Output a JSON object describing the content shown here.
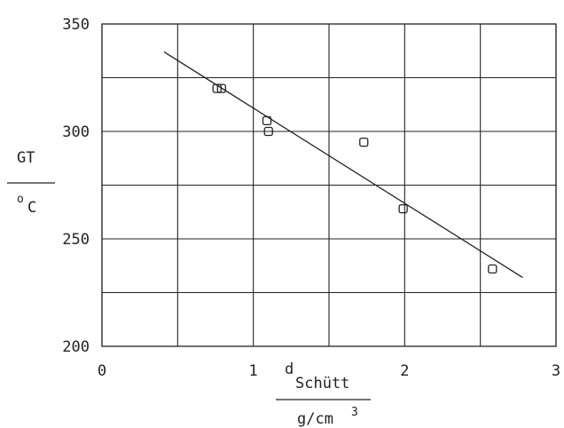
{
  "chart_data": {
    "type": "scatter",
    "title": "",
    "xlabel": {
      "main": "d",
      "sub": "Schütt",
      "unit": "g/cm",
      "unit_sup": "3"
    },
    "ylabel": {
      "main": "GT",
      "unit_sup": "o",
      "unit": "C"
    },
    "xlim": [
      0,
      3
    ],
    "ylim": [
      200,
      350
    ],
    "x_ticks": [
      0,
      1,
      2,
      3
    ],
    "x_tick_labels": [
      "0",
      "1",
      "2",
      "3"
    ],
    "x_grid": [
      0,
      0.5,
      1,
      1.5,
      2,
      2.5,
      3
    ],
    "y_ticks": [
      200,
      250,
      300,
      350
    ],
    "y_tick_labels": [
      "200",
      "250",
      "300",
      "350"
    ],
    "y_grid": [
      200,
      225,
      250,
      275,
      300,
      325,
      350
    ],
    "grid": true,
    "marker": "square",
    "points": [
      {
        "x": 0.76,
        "y": 320
      },
      {
        "x": 0.79,
        "y": 320
      },
      {
        "x": 1.09,
        "y": 305
      },
      {
        "x": 1.1,
        "y": 300
      },
      {
        "x": 1.73,
        "y": 295
      },
      {
        "x": 1.99,
        "y": 264
      },
      {
        "x": 2.58,
        "y": 236
      }
    ],
    "trend_line": {
      "x": [
        0.41,
        2.78
      ],
      "y": [
        337,
        232
      ]
    },
    "colors": {
      "ink": "#222222",
      "background": "#ffffff"
    }
  }
}
